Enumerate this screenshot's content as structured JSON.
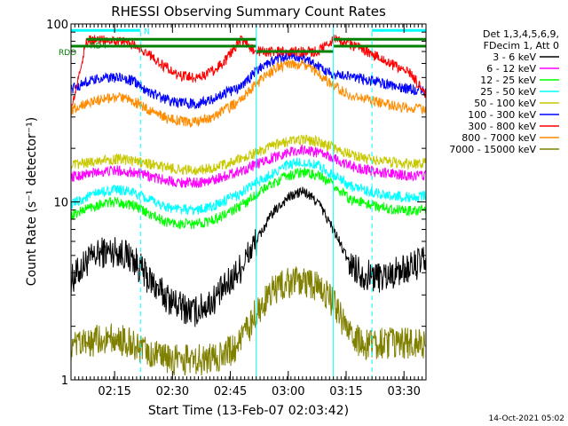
{
  "chart_data": {
    "type": "line",
    "title": "RHESSI Observing Summary Count Rates",
    "xlabel": "Start Time (13-Feb-07 02:03:42)",
    "ylabel": "Count Rate (s⁻¹ detector⁻¹)",
    "footer": "14-Oct-2021 05:02",
    "yscale": "log",
    "ylim": [
      1,
      100
    ],
    "xlim_min": [
      0,
      92
    ],
    "y_tick_labels": [
      "1",
      "10",
      "100"
    ],
    "x_ticks": [
      {
        "t": 11.3,
        "label": "02:15"
      },
      {
        "t": 26.3,
        "label": "02:30"
      },
      {
        "t": 41.3,
        "label": "02:45"
      },
      {
        "t": 56.3,
        "label": "03:00"
      },
      {
        "t": 71.3,
        "label": "03:15"
      },
      {
        "t": 86.3,
        "label": "03:30"
      }
    ],
    "legend_header": [
      "Det 1,3,4,5,6,9,",
      "FDecim 1, Att 0"
    ],
    "series": [
      {
        "name": "3 - 6 keV",
        "color": "#000000",
        "x": [
          0,
          4,
          8,
          12,
          16,
          20,
          24,
          28,
          32,
          36,
          40,
          44,
          48,
          52,
          56,
          60,
          64,
          68,
          72,
          76,
          80,
          84,
          88,
          92
        ],
        "y": [
          3.6,
          4.6,
          5.2,
          5.3,
          4.8,
          3.7,
          3.0,
          2.6,
          2.4,
          2.7,
          3.3,
          4.3,
          6.0,
          8.5,
          10.5,
          11.5,
          10.0,
          7.0,
          4.6,
          3.9,
          3.8,
          4.0,
          4.3,
          4.7
        ]
      },
      {
        "name": "6 - 12 keV",
        "color": "#ff00ff",
        "x": [
          0,
          4,
          8,
          12,
          16,
          20,
          24,
          28,
          32,
          36,
          40,
          44,
          48,
          52,
          56,
          60,
          64,
          68,
          72,
          76,
          80,
          84,
          88,
          92
        ],
        "y": [
          13.8,
          14.3,
          14.8,
          15.0,
          14.7,
          14.0,
          13.3,
          12.9,
          12.8,
          13.1,
          14.0,
          15.0,
          16.2,
          17.6,
          19.0,
          19.6,
          19.0,
          17.6,
          16.0,
          15.2,
          14.6,
          14.3,
          14.0,
          14.2
        ]
      },
      {
        "name": "12 - 25 keV",
        "color": "#00ff00",
        "x": [
          0,
          4,
          8,
          12,
          16,
          20,
          24,
          28,
          32,
          36,
          40,
          44,
          48,
          52,
          56,
          60,
          64,
          68,
          72,
          76,
          80,
          84,
          88,
          92
        ],
        "y": [
          8.3,
          9.2,
          9.8,
          10.0,
          9.6,
          8.6,
          7.8,
          7.5,
          7.5,
          7.8,
          8.5,
          9.5,
          11.0,
          12.6,
          14.0,
          14.7,
          14.0,
          12.4,
          10.5,
          9.8,
          9.4,
          9.1,
          8.9,
          9.1
        ]
      },
      {
        "name": "25 - 50 keV",
        "color": "#00ffff",
        "x": [
          0,
          4,
          8,
          12,
          16,
          20,
          24,
          28,
          32,
          36,
          40,
          44,
          48,
          52,
          56,
          60,
          64,
          68,
          72,
          76,
          80,
          84,
          88,
          92
        ],
        "y": [
          9.6,
          10.6,
          11.4,
          11.7,
          11.3,
          10.3,
          9.5,
          9.1,
          9.0,
          9.3,
          10.1,
          11.2,
          12.8,
          14.4,
          16.0,
          16.7,
          16.0,
          14.2,
          12.4,
          11.6,
          11.1,
          10.8,
          10.6,
          10.8
        ]
      },
      {
        "name": "50 - 100 keV",
        "color": "#c8c800",
        "x": [
          0,
          4,
          8,
          12,
          16,
          20,
          24,
          28,
          32,
          36,
          40,
          44,
          48,
          52,
          56,
          60,
          64,
          68,
          72,
          76,
          80,
          84,
          88,
          92
        ],
        "y": [
          16.0,
          16.6,
          17.2,
          17.4,
          17.0,
          16.4,
          15.7,
          15.2,
          15.1,
          15.4,
          16.2,
          17.4,
          18.8,
          20.4,
          21.8,
          22.4,
          21.8,
          20.2,
          18.6,
          17.6,
          17.0,
          16.6,
          16.3,
          16.5
        ]
      },
      {
        "name": "100 - 300 keV",
        "color": "#0000ff",
        "x": [
          0,
          4,
          8,
          12,
          16,
          20,
          24,
          28,
          32,
          36,
          40,
          44,
          48,
          52,
          56,
          60,
          64,
          68,
          72,
          76,
          80,
          84,
          88,
          92
        ],
        "y": [
          43.0,
          47.0,
          49.5,
          50.0,
          48.0,
          42.0,
          38.0,
          36.0,
          35.6,
          37.0,
          41.0,
          44.0,
          55.0,
          62.0,
          66.0,
          64.0,
          58.0,
          52.0,
          51.0,
          49.0,
          47.0,
          45.0,
          43.0,
          42.0
        ]
      },
      {
        "name": "300 - 800 keV",
        "color": "#ff0000",
        "x": [
          0,
          4,
          8,
          12,
          16,
          20,
          24,
          28,
          32,
          36,
          40,
          44,
          48,
          52,
          56,
          60,
          64,
          68,
          72,
          76,
          80,
          84,
          88,
          92
        ],
        "y": [
          32.0,
          80.0,
          82.0,
          81.0,
          77.0,
          68.0,
          58.0,
          51.0,
          50.0,
          53.0,
          62.0,
          82.0,
          70.0,
          70.0,
          70.0,
          70.0,
          70.0,
          82.0,
          78.0,
          71.0,
          64.0,
          58.0,
          53.0,
          40.0
        ]
      },
      {
        "name": "800 - 7000 keV",
        "color": "#ff8c00",
        "x": [
          0,
          4,
          8,
          12,
          16,
          20,
          24,
          28,
          32,
          36,
          40,
          44,
          48,
          52,
          56,
          60,
          64,
          68,
          72,
          76,
          80,
          84,
          88,
          92
        ],
        "y": [
          33.0,
          36.0,
          38.0,
          38.5,
          37.0,
          33.0,
          30.0,
          28.5,
          28.0,
          29.5,
          33.0,
          37.0,
          46.0,
          54.0,
          60.0,
          59.0,
          53.0,
          45.0,
          40.0,
          38.0,
          36.0,
          34.5,
          33.5,
          33.0
        ]
      },
      {
        "name": "7000 - 15000 keV",
        "color": "#808000",
        "x": [
          0,
          4,
          8,
          12,
          16,
          20,
          24,
          28,
          32,
          36,
          40,
          44,
          48,
          52,
          56,
          60,
          64,
          68,
          72,
          76,
          80,
          84,
          88,
          92
        ],
        "y": [
          1.5,
          1.6,
          1.7,
          1.7,
          1.6,
          1.4,
          1.3,
          1.3,
          1.3,
          1.3,
          1.4,
          1.6,
          2.4,
          3.1,
          3.5,
          3.6,
          3.3,
          2.7,
          1.8,
          1.6,
          1.6,
          1.6,
          1.6,
          1.6
        ]
      }
    ],
    "flags": [
      {
        "label": "RDO",
        "color": "#008000",
        "y": 75,
        "segments": [
          [
            0,
            48
          ],
          [
            68,
            92
          ]
        ]
      },
      {
        "label": "RD4",
        "color": "#008000",
        "y": 82,
        "segments": [
          [
            4,
            48
          ],
          [
            68,
            92
          ]
        ]
      },
      {
        "label": "N",
        "color": "#00ffff",
        "y": 92,
        "segments": [
          [
            0,
            18
          ],
          [
            78,
            92
          ]
        ]
      }
    ],
    "flag_line_level": 70,
    "vertical_lines": {
      "dashed": [
        18,
        78,
        92
      ],
      "solid": [
        0,
        48,
        68
      ]
    }
  }
}
